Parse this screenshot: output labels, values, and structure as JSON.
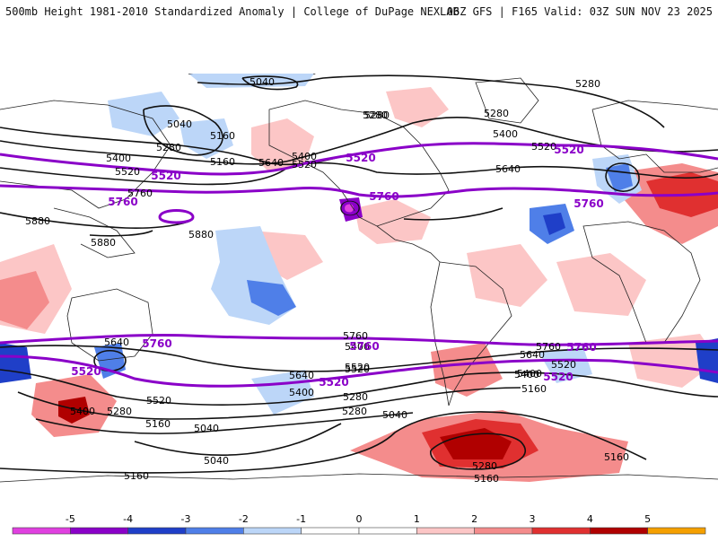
{
  "header": {
    "title_left": "500mb Height 1981-2010 Standardized Anomaly | College of DuPage NEXLAB",
    "title_right": "06Z GFS | F165 Valid: 03Z SUN NOV 23 2025"
  },
  "contour_labels": {
    "black": [
      "5160",
      "5280",
      "5040",
      "5040",
      "5280",
      "5280",
      "5160",
      "5400",
      "5520",
      "5640",
      "5400",
      "5520",
      "5280",
      "5160",
      "5520",
      "5400",
      "5280",
      "5640",
      "5760",
      "5880",
      "5880",
      "5880",
      "5760",
      "5640",
      "5400",
      "5520",
      "5520",
      "5640",
      "5400",
      "5280",
      "5160",
      "5040",
      "5040",
      "5160",
      "5400",
      "5280",
      "5520",
      "5400",
      "5280",
      "5160",
      "5040",
      "5160",
      "5280",
      "5160",
      "5400",
      "5520",
      "5640",
      "5760"
    ],
    "purple": [
      "5520",
      "5520",
      "5760",
      "5760",
      "5520",
      "5760",
      "5760",
      "5760",
      "5520",
      "5520",
      "5760",
      "5520"
    ]
  },
  "anomaly_colors": {
    "neg5": "#e040e0",
    "neg4": "#8a00c8",
    "neg3": "#1f3fc8",
    "neg2": "#4f7fe8",
    "neg1": "#bcd6f8",
    "pos1": "#fcc6c6",
    "pos2": "#f48c8c",
    "pos3": "#e03030",
    "pos4": "#b00000",
    "pos5": "#f5a000"
  },
  "colorbar": {
    "labels": [
      "-5",
      "-4",
      "-3",
      "-2",
      "-1",
      "0",
      "1",
      "2",
      "3",
      "4",
      "5"
    ],
    "colors": [
      "#e040e0",
      "#8a00c8",
      "#1f3fc8",
      "#4f7fe8",
      "#bcd6f8",
      "#ffffff",
      "#ffffff",
      "#fcc6c6",
      "#f48c8c",
      "#e03030",
      "#b00000",
      "#f5a000"
    ]
  }
}
